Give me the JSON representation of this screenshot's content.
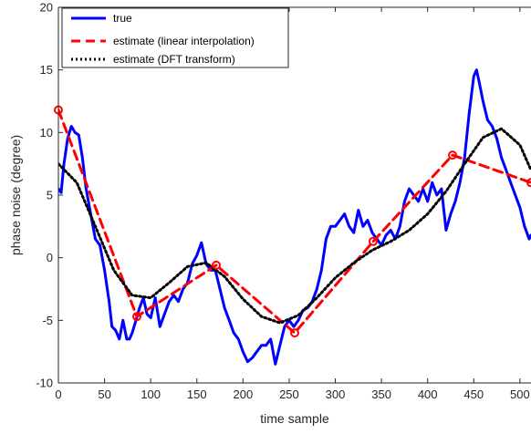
{
  "chart_data": {
    "type": "line",
    "title": "",
    "xlabel": "time sample",
    "ylabel": "phase noise (degree)",
    "xlim": [
      0,
      512
    ],
    "ylim": [
      -10,
      20
    ],
    "xticks": [
      0,
      50,
      100,
      150,
      200,
      250,
      300,
      350,
      400,
      450,
      500
    ],
    "yticks": [
      -10,
      -5,
      0,
      5,
      10,
      15,
      20
    ],
    "xtick_labels": [
      "0",
      "50",
      "100",
      "150",
      "200",
      "250",
      "300",
      "350",
      "400",
      "450",
      "500"
    ],
    "ytick_labels": [
      "-10",
      "-5",
      "0",
      "5",
      "10",
      "15",
      "20"
    ],
    "grid": false,
    "legend_position": "top-left",
    "series": [
      {
        "name": "true",
        "style": "solid",
        "color": "#0000ff",
        "x": [
          0,
          3,
          6,
          10,
          14,
          18,
          22,
          26,
          30,
          35,
          40,
          45,
          50,
          55,
          58,
          62,
          66,
          70,
          74,
          77,
          80,
          84,
          88,
          92,
          96,
          100,
          105,
          110,
          115,
          120,
          125,
          130,
          135,
          140,
          145,
          150,
          155,
          160,
          165,
          170,
          175,
          180,
          185,
          190,
          195,
          200,
          205,
          210,
          215,
          220,
          225,
          230,
          235,
          240,
          245,
          250,
          255,
          260,
          265,
          270,
          275,
          280,
          285,
          290,
          295,
          300,
          305,
          310,
          315,
          320,
          325,
          330,
          335,
          340,
          345,
          350,
          355,
          360,
          365,
          370,
          375,
          380,
          385,
          390,
          395,
          400,
          405,
          410,
          415,
          420,
          425,
          430,
          435,
          440,
          445,
          450,
          453,
          456,
          460,
          465,
          470,
          475,
          480,
          485,
          490,
          495,
          500,
          505,
          510,
          512
        ],
        "y": [
          5.5,
          5.2,
          7.5,
          9.5,
          10.5,
          10,
          9.8,
          8,
          5.5,
          3.5,
          1.5,
          1,
          -1,
          -3.5,
          -5.5,
          -5.8,
          -6.5,
          -5,
          -6.5,
          -6.5,
          -6,
          -5,
          -4,
          -3.2,
          -4.5,
          -4.8,
          -3.2,
          -5.5,
          -4.5,
          -3.5,
          -3,
          -3.5,
          -2.5,
          -2,
          -0.5,
          0.2,
          1.2,
          -0.5,
          -1,
          -1,
          -2.5,
          -4,
          -5,
          -6,
          -6.5,
          -7.5,
          -8.3,
          -8,
          -7.5,
          -7,
          -7,
          -6.5,
          -8.5,
          -7,
          -5.5,
          -5,
          -5.5,
          -5,
          -4.2,
          -4,
          -3.5,
          -2.5,
          -1,
          1.5,
          2.5,
          2.5,
          3,
          3.5,
          2.5,
          2,
          3.8,
          2.5,
          3,
          2,
          1.5,
          1,
          1.8,
          2.2,
          1.5,
          2.5,
          4.5,
          5.5,
          5,
          4.5,
          5.5,
          4.5,
          6,
          5,
          5.5,
          2.2,
          3.5,
          4.5,
          6,
          8,
          11.5,
          14.5,
          15,
          14,
          12.5,
          11,
          10.5,
          9.5,
          8,
          7,
          6,
          5,
          4,
          2.5,
          1.5,
          1.8
        ]
      },
      {
        "name": "estimate (linear interpolation)",
        "style": "dashed",
        "color": "#ff0000",
        "x": [
          0,
          85,
          171,
          256,
          341,
          427,
          512
        ],
        "y": [
          11.8,
          -4.7,
          -0.6,
          -6,
          1.3,
          8.2,
          6
        ]
      },
      {
        "name": "estimate (DFT transform)",
        "style": "dotted",
        "color": "#000000",
        "x": [
          0,
          20,
          40,
          60,
          80,
          100,
          120,
          140,
          160,
          180,
          200,
          220,
          240,
          260,
          280,
          300,
          320,
          340,
          360,
          380,
          400,
          420,
          440,
          460,
          480,
          500,
          512
        ],
        "y": [
          7.5,
          6,
          2.5,
          -1,
          -3,
          -3.2,
          -2,
          -0.7,
          -0.4,
          -1.5,
          -3.3,
          -4.7,
          -5.2,
          -4.6,
          -3.2,
          -1.6,
          -0.4,
          0.6,
          1.3,
          2.2,
          3.5,
          5.3,
          7.5,
          9.6,
          10.3,
          9,
          7
        ]
      }
    ],
    "markers": {
      "series": "estimate (linear interpolation)",
      "shape": "circle",
      "color": "#ff0000",
      "x": [
        0,
        85,
        171,
        256,
        341,
        427,
        512
      ],
      "y": [
        11.8,
        -4.7,
        -0.6,
        -6,
        1.3,
        8.2,
        6
      ]
    }
  }
}
